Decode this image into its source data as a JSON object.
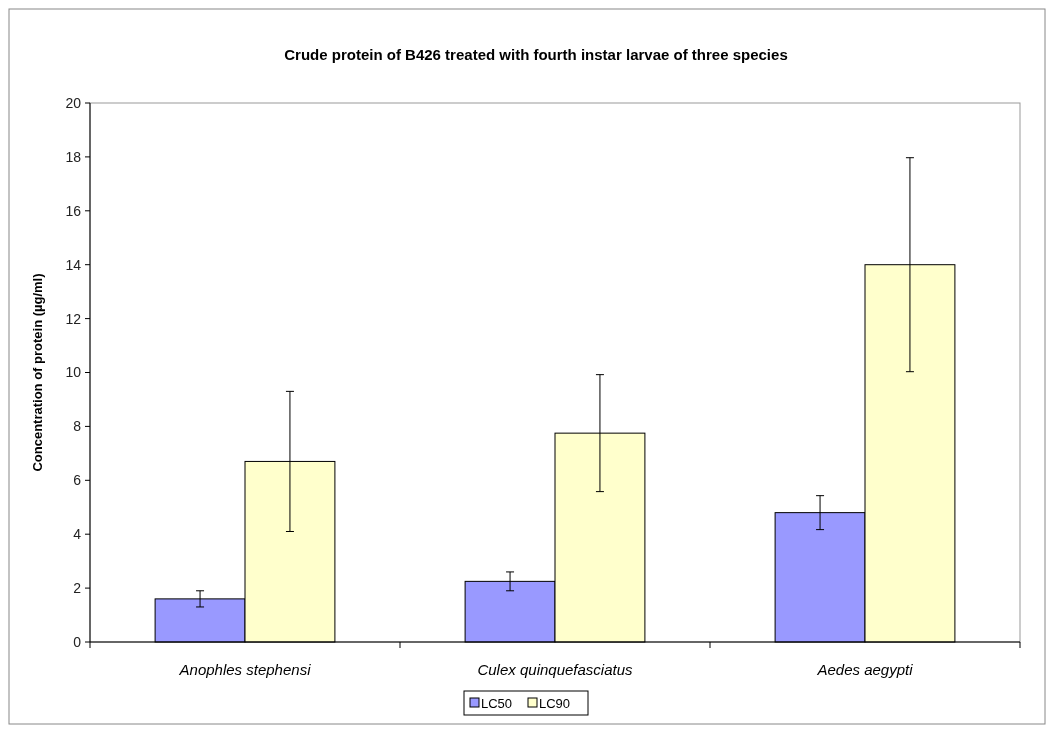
{
  "chart_data": {
    "type": "bar",
    "title": "Crude protein of B426 treated with fourth instar larvae of three species",
    "ylabel": "Concentration of protein (µg/ml)",
    "categories": [
      "Anophles stephensi",
      "Culex quinquefasciatus",
      "Aedes aegypti"
    ],
    "series": [
      {
        "name": "LC50",
        "color": "#9999ff",
        "values": [
          1.6,
          2.25,
          4.8
        ],
        "errors": [
          0.3,
          0.35,
          0.63
        ]
      },
      {
        "name": "LC90",
        "color": "#ffffcc",
        "values": [
          6.7,
          7.75,
          14
        ],
        "errors": [
          2.6,
          2.17,
          3.97
        ]
      }
    ],
    "ylim": [
      0,
      20
    ],
    "yticks": [
      0,
      2,
      4,
      6,
      8,
      10,
      12,
      14,
      16,
      18,
      20
    ],
    "grid": false,
    "legend": "bottom"
  }
}
